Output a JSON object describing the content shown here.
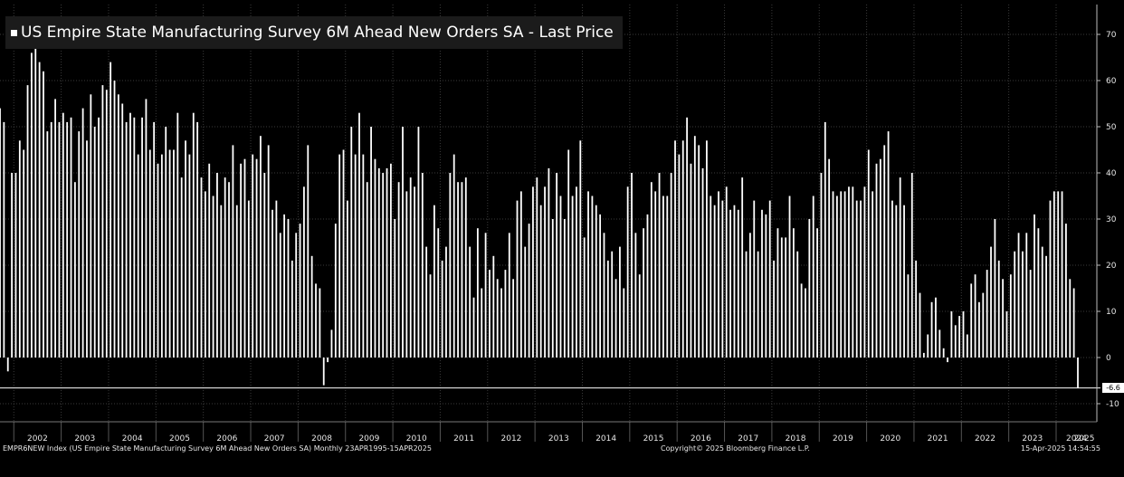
{
  "chart_data": {
    "type": "bar",
    "title": "US Empire State Manufacturing Survey 6M Ahead New Orders SA - Last Price",
    "ylim": [
      -15,
      78
    ],
    "yticks": [
      -10,
      0,
      10,
      20,
      30,
      40,
      50,
      60,
      70
    ],
    "xticks": [
      "2002",
      "2003",
      "2004",
      "2005",
      "2006",
      "2007",
      "2008",
      "2009",
      "2010",
      "2011",
      "2012",
      "2013",
      "2014",
      "2015",
      "2016",
      "2017",
      "2018",
      "2019",
      "2020",
      "2021",
      "2022",
      "2023",
      "2024",
      "2025"
    ],
    "start": "2001-09",
    "grid": true,
    "last_value_label": "-6.6",
    "series": [
      {
        "values": [
          54,
          51,
          -3,
          40,
          40,
          47,
          45,
          59,
          66,
          70,
          64,
          62,
          49,
          51,
          56,
          51,
          53,
          51,
          52,
          38,
          49,
          54,
          47,
          57,
          50,
          52,
          59,
          58,
          64,
          60,
          57,
          55,
          51,
          53,
          52,
          44,
          52,
          56,
          45,
          51,
          42,
          44,
          50,
          45,
          45,
          53,
          39,
          47,
          44,
          53,
          51,
          39,
          36,
          42,
          35,
          40,
          33,
          39,
          38,
          46,
          33,
          42,
          43,
          34,
          44,
          43,
          48,
          40,
          46,
          32,
          34,
          27,
          31,
          30,
          21,
          27,
          29,
          37,
          46,
          22,
          16,
          15,
          -6,
          -1,
          6,
          29,
          44,
          45,
          34,
          50,
          44,
          53,
          44,
          38,
          50,
          43,
          41,
          40,
          41,
          42,
          30,
          38,
          50,
          36,
          39,
          37,
          50,
          40,
          24,
          18,
          33,
          28,
          21,
          24,
          40,
          44,
          38,
          38,
          39,
          24,
          13,
          28,
          15,
          27,
          19,
          22,
          17,
          15,
          19,
          27,
          17,
          34,
          36,
          24,
          29,
          37,
          39,
          33,
          37,
          41,
          30,
          40,
          35,
          30,
          45,
          35,
          37,
          47,
          26,
          36,
          35,
          33,
          31,
          27,
          21,
          23,
          17,
          24,
          15,
          37,
          40,
          27,
          18,
          28,
          31,
          38,
          36,
          40,
          35,
          35,
          40,
          47,
          44,
          47,
          52,
          42,
          48,
          46,
          41,
          47,
          35,
          33,
          36,
          34,
          37,
          32,
          33,
          32,
          39,
          23,
          27,
          34,
          23,
          32,
          31,
          34,
          21,
          28,
          26,
          26,
          35,
          28,
          23,
          16,
          15,
          30,
          35,
          28,
          40,
          51,
          43,
          36,
          35,
          36,
          36,
          37,
          37,
          34,
          34,
          37,
          45,
          36,
          42,
          43,
          46,
          49,
          34,
          33,
          39,
          33,
          18,
          40,
          21,
          14,
          1,
          5,
          12,
          13,
          6,
          2,
          -1,
          10,
          7,
          9,
          10,
          5,
          16,
          18,
          12,
          14,
          19,
          24,
          30,
          21,
          17,
          10,
          18,
          23,
          27,
          23,
          27,
          19,
          31,
          28,
          24,
          22,
          34,
          36,
          36,
          36,
          29,
          17,
          15,
          -6.6
        ]
      }
    ]
  },
  "footer": {
    "left": "EMPR6NEW Index (US Empire State Manufacturing Survey 6M Ahead New Orders SA)  Monthly 23APR1995-15APR2025",
    "center": "Copyright© 2025 Bloomberg Finance L.P.",
    "right": "15-Apr-2025 14:54:55"
  },
  "colors": {
    "background": "#000000",
    "bars": "#ffffff",
    "grid": "#3a3a3a",
    "title_bg": "#1b1b1b"
  }
}
